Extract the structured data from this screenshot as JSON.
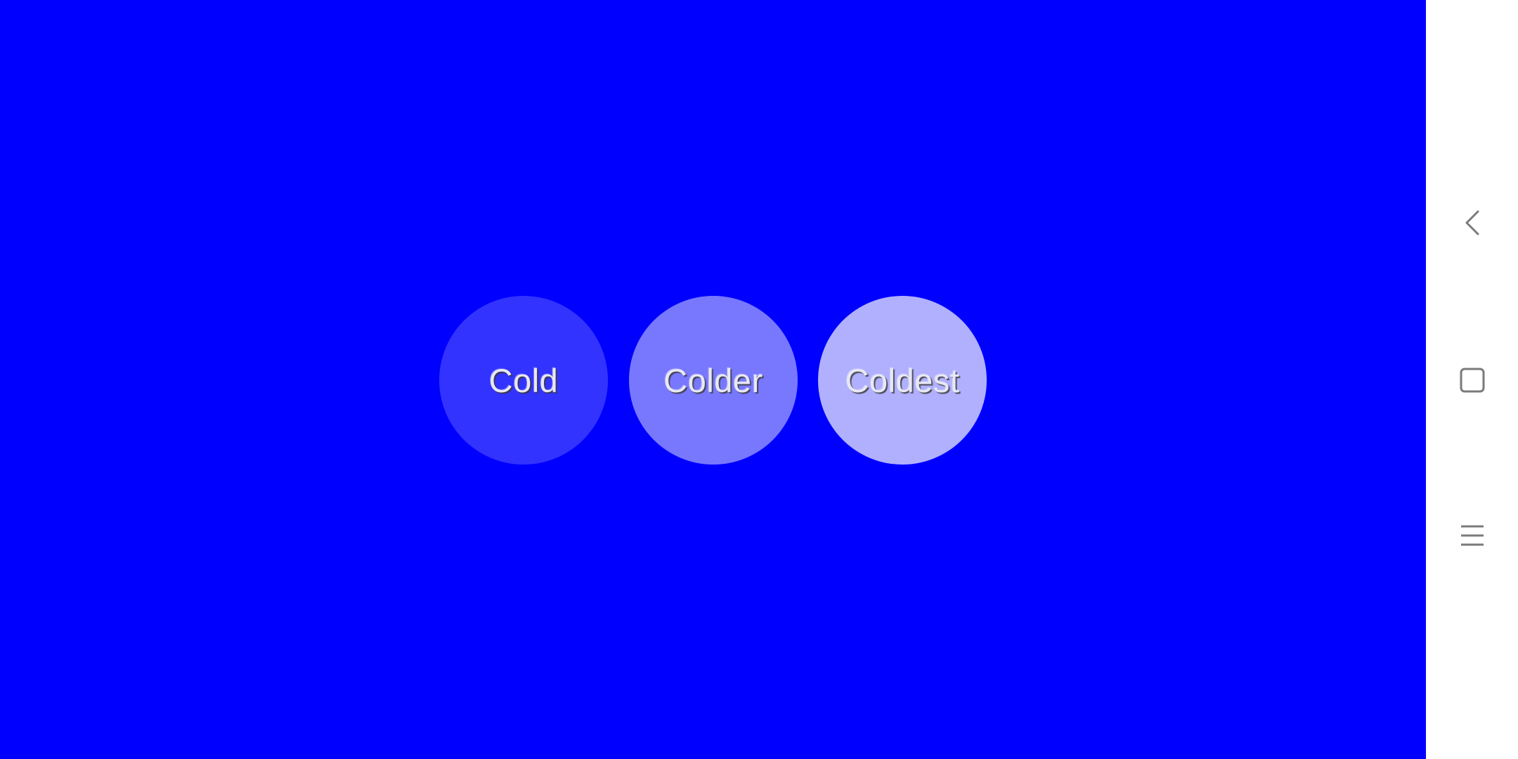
{
  "colors": {
    "background": "#0000ff",
    "nav_bar": "#ffffff",
    "nav_icon": "#7a7a7a"
  },
  "circles": [
    {
      "label": "Cold",
      "color": "#3333ff"
    },
    {
      "label": "Colder",
      "color": "#7878ff"
    },
    {
      "label": "Coldest",
      "color": "#b0b0ff"
    }
  ],
  "nav": {
    "back_icon": "chevron-left-icon",
    "home_icon": "square-icon",
    "menu_icon": "hamburger-icon"
  }
}
